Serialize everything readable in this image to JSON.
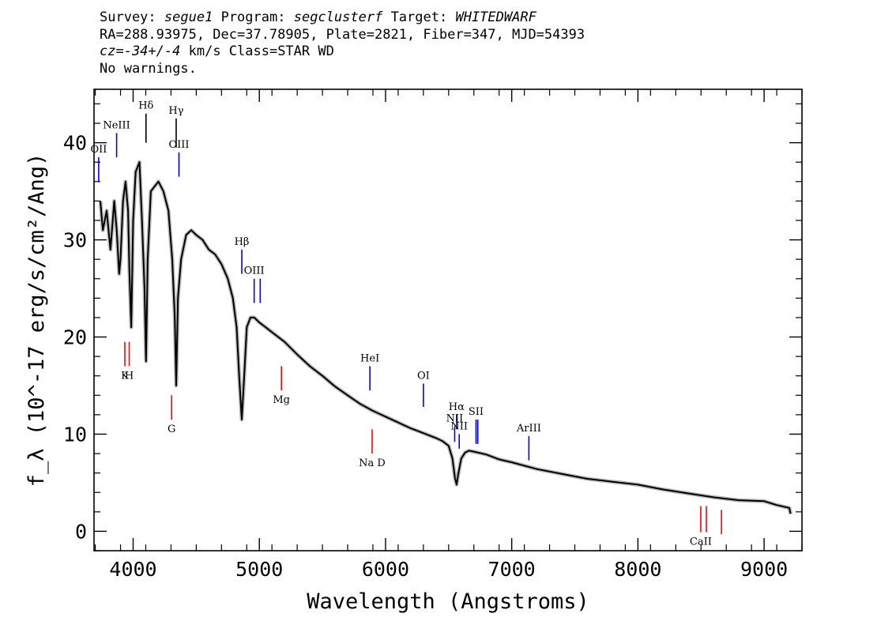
{
  "header": {
    "survey_label": "Survey:",
    "survey": "segue1",
    "program_label": "Program:",
    "program": "segclusterf",
    "target_label": "Target:",
    "target": "WHITEDWARF",
    "line2": "RA=288.93975, Dec=37.78905, Plate=2821, Fiber=347, MJD=54393",
    "cz_label": "cz",
    "cz_value": "=-34+/-4",
    "cz_rest": " km/s Class=STAR WD",
    "line4": "No warnings."
  },
  "chart_data": {
    "type": "line",
    "xlabel": "Wavelength (Angstroms)",
    "ylabel": "f_λ (10^-17 erg/s/cm²/Ang)",
    "xlim": [
      3690,
      9300
    ],
    "ylim": [
      -2,
      45.5
    ],
    "xticks": [
      4000,
      5000,
      6000,
      7000,
      8000,
      9000
    ],
    "yticks": [
      0,
      10,
      20,
      30,
      40
    ],
    "series": [
      {
        "color": "#000000",
        "x": [
          3740,
          3760,
          3790,
          3820,
          3850,
          3870,
          3889,
          3900,
          3920,
          3940,
          3960,
          3970,
          3985,
          4000,
          4020,
          4050,
          4070,
          4090,
          4102,
          4115,
          4140,
          4170,
          4200,
          4240,
          4280,
          4310,
          4330,
          4341,
          4355,
          4380,
          4420,
          4460,
          4500,
          4550,
          4600,
          4650,
          4700,
          4750,
          4790,
          4820,
          4840,
          4861,
          4880,
          4900,
          4930,
          4960,
          5000,
          5050,
          5100,
          5200,
          5300,
          5400,
          5500,
          5600,
          5700,
          5800,
          5900,
          6000,
          6100,
          6200,
          6300,
          6400,
          6450,
          6500,
          6530,
          6550,
          6563,
          6575,
          6600,
          6630,
          6660,
          6700,
          6800,
          6900,
          7000,
          7200,
          7400,
          7600,
          7800,
          8000,
          8200,
          8400,
          8600,
          8800,
          9000,
          9100,
          9200,
          9210
        ],
        "y": [
          34,
          31,
          33,
          29,
          34,
          31,
          26.5,
          28,
          34,
          36,
          33,
          27,
          21,
          32,
          37,
          38,
          32,
          25,
          17.5,
          28,
          35,
          35.5,
          36,
          35,
          33,
          28,
          22,
          15,
          24,
          28,
          30.5,
          31,
          30.5,
          30,
          29,
          28.5,
          27.5,
          26,
          24,
          21,
          16,
          11.5,
          16,
          21,
          22,
          22,
          21.5,
          21,
          20.5,
          19.5,
          18.2,
          17,
          16,
          14.9,
          14,
          13.1,
          12.4,
          11.8,
          11.2,
          10.6,
          10.1,
          9.6,
          9.3,
          8.8,
          7.5,
          5.5,
          4.8,
          5.8,
          7.5,
          8.1,
          8.3,
          8.2,
          7.9,
          7.4,
          7.1,
          6.4,
          5.9,
          5.4,
          5.1,
          4.8,
          4.3,
          3.9,
          3.5,
          3.2,
          3.1,
          2.7,
          2.4,
          1.8
        ]
      }
    ],
    "lines": [
      {
        "label": "OII",
        "wave": 3727,
        "color": "blue",
        "y_bottom": 36,
        "y_top": 38.5
      },
      {
        "label": "NeIII",
        "wave": 3869,
        "color": "blue",
        "y_bottom": 38.5,
        "y_top": 41
      },
      {
        "label": "Hδ",
        "wave": 4102,
        "color": "black",
        "y_bottom": 40,
        "y_top": 43
      },
      {
        "label": "Hγ",
        "wave": 4341,
        "color": "black",
        "y_bottom": 39.5,
        "y_top": 42.5
      },
      {
        "label": "OIII",
        "wave": 4363,
        "color": "blue",
        "y_bottom": 36.5,
        "y_top": 39
      },
      {
        "label": "Hβ",
        "wave": 4861,
        "color": "blue",
        "y_bottom": 26.5,
        "y_top": 29
      },
      {
        "label": "OIII",
        "wave": 4959,
        "color": "blue",
        "y_bottom": 23.5,
        "y_top": 26
      },
      {
        "label": "",
        "wave": 5007,
        "color": "blue",
        "y_bottom": 23.5,
        "y_top": 26
      },
      {
        "label": "HeI",
        "wave": 5876,
        "color": "blue",
        "y_bottom": 14.5,
        "y_top": 17
      },
      {
        "label": "OI",
        "wave": 6300,
        "color": "blue",
        "y_bottom": 12.8,
        "y_top": 15.2
      },
      {
        "label": "NII",
        "wave": 6548,
        "color": "blue",
        "y_bottom": 9.2,
        "y_top": 10.8
      },
      {
        "label": "Hα",
        "wave": 6563,
        "color": "blue",
        "y_bottom": 10.5,
        "y_top": 12
      },
      {
        "label": "NII",
        "wave": 6584,
        "color": "blue",
        "y_bottom": 8.5,
        "y_top": 10
      },
      {
        "label": "SII",
        "wave": 6717,
        "color": "blue",
        "y_bottom": 9,
        "y_top": 11.5
      },
      {
        "label": "",
        "wave": 6731,
        "color": "blue",
        "y_bottom": 9,
        "y_top": 11.5
      },
      {
        "label": "ArIII",
        "wave": 7136,
        "color": "blue",
        "y_bottom": 7.3,
        "y_top": 9.8
      },
      {
        "label": "K",
        "wave": 3934,
        "color": "red",
        "y_bottom": 17,
        "y_top": 19.5
      },
      {
        "label": "H",
        "wave": 3969,
        "color": "red",
        "y_bottom": 17,
        "y_top": 19.5
      },
      {
        "label": "G",
        "wave": 4305,
        "color": "red",
        "y_bottom": 11.5,
        "y_top": 14
      },
      {
        "label": "Mg",
        "wave": 5175,
        "color": "red",
        "y_bottom": 14.5,
        "y_top": 17
      },
      {
        "label": "Na D",
        "wave": 5894,
        "color": "red",
        "y_bottom": 8,
        "y_top": 10.5
      },
      {
        "label": "CaII",
        "wave": 8498,
        "color": "red",
        "y_bottom": -0.1,
        "y_top": 2.6
      },
      {
        "label": "",
        "wave": 8542,
        "color": "red",
        "y_bottom": -0.1,
        "y_top": 2.6
      },
      {
        "label": "",
        "wave": 8662,
        "color": "red",
        "y_bottom": -0.3,
        "y_top": 2.2
      }
    ]
  }
}
